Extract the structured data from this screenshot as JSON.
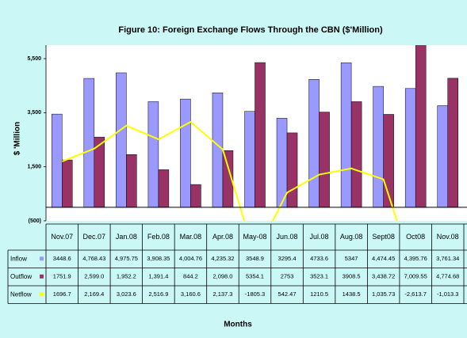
{
  "chart_data": {
    "type": "bar-line",
    "title": "Figure 10:  Foreign Exchange Flows Through the CBN ($'Million)",
    "y_label": "$ 'Million",
    "x_label": "Months",
    "categories": [
      "Nov.07",
      "Dec.07",
      "Jan.08",
      "Feb.08",
      "Mar.08",
      "Apr.08",
      "May-08",
      "Jun.08",
      "Jul.08",
      "Aug.08",
      "Sept08",
      "Oct08",
      "Nov.08"
    ],
    "series": [
      {
        "name": "Inflow",
        "type": "bar",
        "color": "#9999ff",
        "values": [
          3448.6,
          4768.43,
          4975.75,
          3908.35,
          4004.76,
          4235.32,
          3548.9,
          3295.4,
          4733.6,
          5347,
          4474.45,
          4395.76,
          3761.34
        ],
        "value_labels": [
          "3448.6",
          "4,768.43",
          "4,975.75",
          "3,908.35",
          "4,004.76",
          "4,235.32",
          "3548.9",
          "3295.4",
          "4733.6",
          "5347",
          "4,474.45",
          "4,395.76",
          "3,761.34"
        ]
      },
      {
        "name": "Outflow",
        "type": "bar",
        "color": "#993366",
        "values": [
          1751.9,
          2599.0,
          1952.2,
          1391.4,
          844.2,
          2098.0,
          5354.1,
          2753,
          3523.1,
          3908.5,
          3438.72,
          7009.55,
          4774.68
        ],
        "value_labels": [
          "1751.9",
          "2,599.0",
          "1,952.2",
          "1,391.4",
          "844.2",
          "2,098.0",
          "5354.1",
          "2753",
          "3523.1",
          "3908.5",
          "3,438.72",
          "7,009.55",
          "4,774.68"
        ]
      },
      {
        "name": "Netflow",
        "type": "line",
        "color": "#ffff00",
        "values": [
          1696.7,
          2169.4,
          3023.6,
          2516.9,
          3160.6,
          2137.3,
          -1805.3,
          542.47,
          1210.5,
          1438.5,
          1035.73,
          -2613.7,
          -1013.3
        ],
        "value_labels": [
          "1696.7",
          "2,169.4",
          "3,023.6",
          "2,516.9",
          "3,160.6",
          "2,137.3",
          "-1805.3",
          "542.47",
          "1210.5",
          "1438.5",
          "1,035.73",
          "-2,613.7",
          "-1,013.3"
        ]
      }
    ],
    "ylim": [
      -500,
      6000
    ],
    "yticks": [
      {
        "value": -500,
        "label": "(500)"
      },
      {
        "value": 1500,
        "label": "1,500"
      },
      {
        "value": 3500,
        "label": "3,500"
      },
      {
        "value": 5500,
        "label": "5,500"
      }
    ],
    "grid": false
  }
}
